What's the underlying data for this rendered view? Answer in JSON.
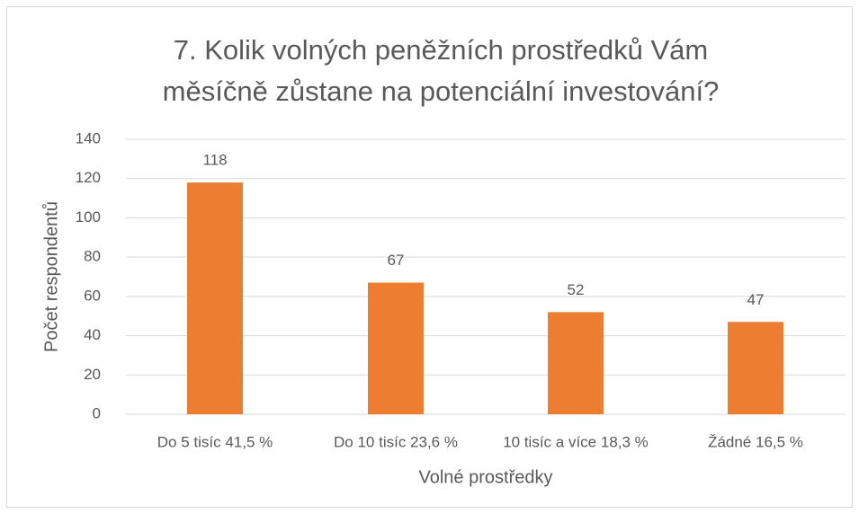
{
  "chart_data": {
    "type": "bar",
    "title": [
      "7. Kolik volných peněžních prostředků Vám",
      "měsíčně zůstane na potenciální investování?"
    ],
    "x_label": "Volné prostředky",
    "y_label": "Počet respondentů",
    "categories": [
      "Do 5 tisíc 41,5 %",
      "Do 10 tisíc 23,6 %",
      "10 tisíc a více 18,3 %",
      "Žádné 16,5 %"
    ],
    "values": [
      118,
      67,
      52,
      47
    ],
    "color": "#ed7d31",
    "ylim": [
      0,
      140
    ],
    "yticks": [
      0,
      20,
      40,
      60,
      80,
      100,
      120,
      140
    ],
    "grid": true,
    "data_labels": true
  }
}
